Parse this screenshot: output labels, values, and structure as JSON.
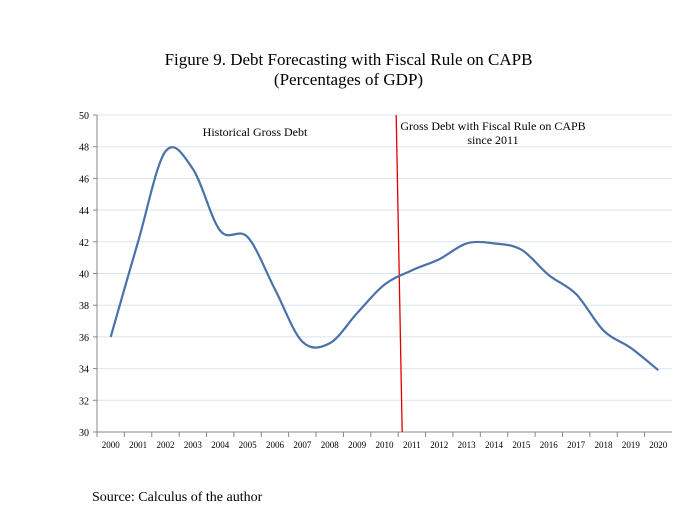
{
  "chart_data": {
    "type": "line",
    "title": "Figure 9. Debt Forecasting with Fiscal Rule on CAPB",
    "subtitle": "(Percentages of GDP)",
    "categories": [
      "2000",
      "2001",
      "2002",
      "2003",
      "2004",
      "2005",
      "2006",
      "2007",
      "2008",
      "2009",
      "2010",
      "2011",
      "2012",
      "2013",
      "2014",
      "2015",
      "2016",
      "2017",
      "2018",
      "2019",
      "2020"
    ],
    "series": [
      {
        "name": "Gross Debt",
        "color": "#4a72a8",
        "values": [
          36.0,
          42.0,
          47.7,
          46.6,
          42.7,
          42.3,
          39.0,
          35.7,
          35.6,
          37.5,
          39.3,
          40.2,
          40.9,
          41.9,
          41.9,
          41.5,
          39.9,
          38.7,
          36.4,
          35.3,
          33.9
        ]
      }
    ],
    "yticks": [
      30,
      32,
      34,
      36,
      38,
      40,
      42,
      44,
      46,
      48,
      50
    ],
    "ylim": [
      30,
      50
    ],
    "grid": true,
    "divider": {
      "position": 10.5,
      "color": "#e00000"
    },
    "annotations": [
      "Historical  Gross Debt",
      "Gross Debt with Fiscal Rule on CAPB",
      "since 2011"
    ]
  },
  "source": "Source: Calculus of the author"
}
